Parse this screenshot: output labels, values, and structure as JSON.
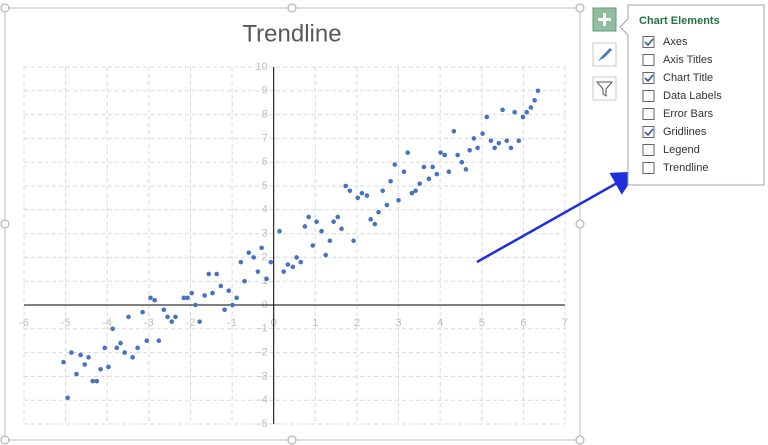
{
  "chart_data": {
    "type": "scatter",
    "title": "Trendline",
    "color": "#4472c4",
    "grid": true,
    "xlim": [
      -6,
      7
    ],
    "ylim": [
      -5,
      10
    ],
    "xticks": [
      -6,
      -5,
      -4,
      -3,
      -2,
      -1,
      0,
      1,
      2,
      3,
      4,
      5,
      6,
      7
    ],
    "yticks": [
      -5,
      -4,
      -3,
      -2,
      -1,
      0,
      1,
      2,
      3,
      4,
      5,
      6,
      7,
      8,
      9,
      10
    ],
    "x": [
      -5.05,
      -4.95,
      -4.86,
      -4.74,
      -4.64,
      -4.54,
      -4.45,
      -4.35,
      -4.25,
      -4.16,
      -4.06,
      -3.97,
      -3.87,
      -3.77,
      -3.68,
      -3.58,
      -3.49,
      -3.39,
      -3.27,
      -3.15,
      -3.05,
      -2.96,
      -2.86,
      -2.76,
      -2.64,
      -2.55,
      -2.45,
      -2.36,
      -2.16,
      -2.07,
      -1.97,
      -1.88,
      -1.78,
      -1.66,
      -1.56,
      -1.47,
      -1.37,
      -1.27,
      -1.18,
      -1.08,
      -0.99,
      -0.89,
      -0.79,
      -0.7,
      -0.6,
      -0.48,
      -0.38,
      -0.29,
      -0.17,
      -0.07,
      0.14,
      0.24,
      0.34,
      0.46,
      0.55,
      0.65,
      0.75,
      0.84,
      0.94,
      1.03,
      1.15,
      1.25,
      1.35,
      1.44,
      1.54,
      1.63,
      1.73,
      1.83,
      1.92,
      2.02,
      2.12,
      2.24,
      2.33,
      2.43,
      2.52,
      2.62,
      2.72,
      2.81,
      2.91,
      3.0,
      3.13,
      3.22,
      3.32,
      3.41,
      3.51,
      3.61,
      3.73,
      3.82,
      3.92,
      4.01,
      4.11,
      4.21,
      4.33,
      4.42,
      4.52,
      4.62,
      4.71,
      4.81,
      4.9,
      5.02,
      5.12,
      5.22,
      5.31,
      5.41,
      5.5,
      5.6,
      5.7,
      5.79,
      5.89,
      5.99,
      6.08,
      6.18,
      6.27,
      6.35
    ],
    "values": [
      -2.4,
      -3.9,
      -2.0,
      -2.9,
      -2.1,
      -2.5,
      -2.2,
      -3.2,
      -3.2,
      -2.7,
      -1.8,
      -2.6,
      -1.0,
      -1.8,
      -1.6,
      -2.0,
      -0.5,
      -2.2,
      -1.8,
      -0.3,
      -1.5,
      0.3,
      0.2,
      -1.5,
      -0.2,
      -0.5,
      -0.7,
      -0.5,
      0.3,
      0.3,
      0.5,
      0.0,
      -0.7,
      0.4,
      1.3,
      0.5,
      1.3,
      0.8,
      -0.2,
      0.6,
      0.0,
      0.3,
      1.8,
      1.0,
      2.2,
      2.0,
      1.4,
      2.4,
      1.1,
      1.8,
      3.1,
      1.4,
      1.7,
      1.6,
      2.0,
      1.8,
      3.3,
      3.7,
      2.5,
      3.5,
      3.1,
      2.1,
      2.7,
      3.5,
      3.7,
      3.2,
      5.0,
      4.8,
      2.7,
      4.5,
      4.7,
      4.6,
      3.6,
      3.4,
      3.9,
      4.8,
      4.2,
      5.2,
      5.9,
      4.4,
      5.6,
      6.4,
      4.7,
      4.8,
      5.1,
      5.8,
      5.3,
      5.8,
      5.5,
      6.4,
      6.3,
      5.6,
      7.3,
      6.3,
      6.0,
      5.7,
      6.5,
      7.0,
      6.6,
      7.2,
      7.9,
      6.9,
      6.6,
      6.8,
      8.2,
      6.9,
      6.6,
      8.1,
      6.9,
      7.9,
      8.1,
      8.3,
      8.6,
      9.0
    ]
  },
  "panel": {
    "title": "Chart Elements",
    "items": [
      {
        "label": "Axes",
        "checked": true
      },
      {
        "label": "Axis Titles",
        "checked": false
      },
      {
        "label": "Chart Title",
        "checked": true
      },
      {
        "label": "Data Labels",
        "checked": false
      },
      {
        "label": "Error Bars",
        "checked": false
      },
      {
        "label": "Gridlines",
        "checked": true
      },
      {
        "label": "Legend",
        "checked": false
      },
      {
        "label": "Trendline",
        "checked": false
      }
    ]
  }
}
